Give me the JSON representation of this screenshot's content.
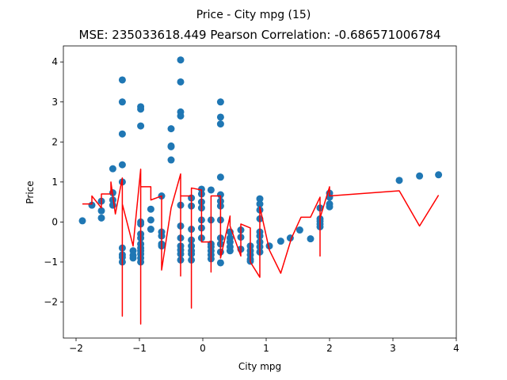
{
  "chart_data": {
    "type": "scatter",
    "title": "Price - City mpg (15)",
    "subtitle": "MSE: 235033618.449 Pearson Correlation: -0.686571006784",
    "xlabel": "City mpg",
    "ylabel": "Price",
    "xlim": [
      -2.2,
      4.0
    ],
    "ylim": [
      -2.9,
      4.4
    ],
    "xticks": [
      -2,
      -1,
      0,
      1,
      2,
      3,
      4
    ],
    "yticks": [
      -2,
      -1,
      0,
      1,
      2,
      3,
      4
    ],
    "grid": false,
    "series": [
      {
        "kind": "scatter",
        "color": "#1f77b4",
        "points": [
          [
            -1.9,
            0.03
          ],
          [
            -1.75,
            0.42
          ],
          [
            -1.6,
            0.52
          ],
          [
            -1.6,
            0.28
          ],
          [
            -1.6,
            0.1
          ],
          [
            -1.42,
            1.33
          ],
          [
            -1.42,
            0.73
          ],
          [
            -1.42,
            0.55
          ],
          [
            -1.42,
            0.42
          ],
          [
            -1.27,
            3.55
          ],
          [
            -1.27,
            3.0
          ],
          [
            -1.27,
            2.2
          ],
          [
            -1.27,
            1.43
          ],
          [
            -1.27,
            1.0
          ],
          [
            -1.27,
            -0.65
          ],
          [
            -1.27,
            -0.82
          ],
          [
            -1.27,
            -0.88
          ],
          [
            -1.27,
            -1.0
          ],
          [
            -1.1,
            -0.72
          ],
          [
            -1.1,
            -0.83
          ],
          [
            -1.1,
            -0.9
          ],
          [
            -0.98,
            2.88
          ],
          [
            -0.98,
            2.82
          ],
          [
            -0.98,
            2.4
          ],
          [
            -0.98,
            0.0
          ],
          [
            -0.98,
            -0.05
          ],
          [
            -0.98,
            -0.3
          ],
          [
            -0.98,
            -0.4
          ],
          [
            -0.98,
            -0.55
          ],
          [
            -0.98,
            -0.65
          ],
          [
            -0.98,
            -0.72
          ],
          [
            -0.98,
            -0.8
          ],
          [
            -0.98,
            -0.9
          ],
          [
            -0.98,
            -1.0
          ],
          [
            -0.82,
            0.32
          ],
          [
            -0.82,
            0.05
          ],
          [
            -0.82,
            -0.18
          ],
          [
            -0.65,
            0.65
          ],
          [
            -0.65,
            -0.25
          ],
          [
            -0.65,
            -0.35
          ],
          [
            -0.65,
            -0.55
          ],
          [
            -0.65,
            -0.6
          ],
          [
            -0.5,
            2.33
          ],
          [
            -0.5,
            1.9
          ],
          [
            -0.5,
            1.88
          ],
          [
            -0.5,
            1.55
          ],
          [
            -0.35,
            4.05
          ],
          [
            -0.35,
            3.5
          ],
          [
            -0.35,
            2.75
          ],
          [
            -0.35,
            2.65
          ],
          [
            -0.35,
            0.42
          ],
          [
            -0.35,
            -0.1
          ],
          [
            -0.35,
            -0.4
          ],
          [
            -0.35,
            -0.6
          ],
          [
            -0.35,
            -0.7
          ],
          [
            -0.35,
            -0.8
          ],
          [
            -0.35,
            -0.95
          ],
          [
            -0.18,
            0.6
          ],
          [
            -0.18,
            0.4
          ],
          [
            -0.18,
            -0.18
          ],
          [
            -0.18,
            -0.45
          ],
          [
            -0.18,
            -0.6
          ],
          [
            -0.18,
            -0.72
          ],
          [
            -0.18,
            -0.8
          ],
          [
            -0.18,
            -0.95
          ],
          [
            -0.02,
            0.82
          ],
          [
            -0.02,
            0.7
          ],
          [
            -0.02,
            0.5
          ],
          [
            -0.02,
            0.35
          ],
          [
            -0.02,
            0.05
          ],
          [
            -0.02,
            -0.15
          ],
          [
            -0.02,
            -0.4
          ],
          [
            0.13,
            0.8
          ],
          [
            0.13,
            0.05
          ],
          [
            0.13,
            -0.55
          ],
          [
            0.13,
            -0.62
          ],
          [
            0.13,
            -0.72
          ],
          [
            0.13,
            -0.82
          ],
          [
            0.13,
            -0.92
          ],
          [
            0.28,
            3.0
          ],
          [
            0.28,
            2.62
          ],
          [
            0.28,
            2.45
          ],
          [
            0.28,
            1.12
          ],
          [
            0.28,
            0.68
          ],
          [
            0.28,
            0.52
          ],
          [
            0.28,
            0.4
          ],
          [
            0.28,
            0.05
          ],
          [
            0.28,
            -0.4
          ],
          [
            0.28,
            -0.55
          ],
          [
            0.28,
            -0.75
          ],
          [
            0.28,
            -1.02
          ],
          [
            0.43,
            -0.25
          ],
          [
            0.43,
            -0.4
          ],
          [
            0.43,
            -0.5
          ],
          [
            0.43,
            -0.62
          ],
          [
            0.43,
            -0.72
          ],
          [
            0.6,
            -0.2
          ],
          [
            0.6,
            -0.38
          ],
          [
            0.6,
            -0.68
          ],
          [
            0.75,
            -0.6
          ],
          [
            0.75,
            -0.72
          ],
          [
            0.75,
            -0.82
          ],
          [
            0.75,
            -0.93
          ],
          [
            0.75,
            -0.98
          ],
          [
            0.9,
            0.58
          ],
          [
            0.9,
            0.45
          ],
          [
            0.9,
            0.3
          ],
          [
            0.9,
            0.08
          ],
          [
            0.9,
            -0.25
          ],
          [
            0.9,
            -0.35
          ],
          [
            0.9,
            -0.5
          ],
          [
            0.9,
            -0.62
          ],
          [
            0.9,
            -0.75
          ],
          [
            1.05,
            -0.6
          ],
          [
            1.23,
            -0.48
          ],
          [
            1.38,
            -0.4
          ],
          [
            1.53,
            -0.2
          ],
          [
            1.7,
            -0.42
          ],
          [
            1.85,
            0.35
          ],
          [
            1.85,
            0.08
          ],
          [
            1.85,
            0.02
          ],
          [
            1.85,
            -0.05
          ],
          [
            1.85,
            -0.12
          ],
          [
            2.0,
            0.72
          ],
          [
            2.0,
            0.62
          ],
          [
            2.0,
            0.45
          ],
          [
            2.0,
            0.38
          ],
          [
            3.1,
            1.04
          ],
          [
            3.42,
            1.15
          ],
          [
            3.72,
            1.18
          ]
        ]
      },
      {
        "kind": "line",
        "color": "#ff0000",
        "points": [
          [
            -1.9,
            0.45
          ],
          [
            -1.75,
            0.45
          ],
          [
            -1.75,
            0.65
          ],
          [
            -1.6,
            0.35
          ],
          [
            -1.6,
            0.7
          ],
          [
            -1.45,
            0.7
          ],
          [
            -1.45,
            1.0
          ],
          [
            -1.38,
            0.2
          ],
          [
            -1.27,
            1.1
          ],
          [
            -1.27,
            -2.35
          ],
          [
            -1.27,
            0.45
          ],
          [
            -1.1,
            -0.6
          ],
          [
            -0.98,
            1.32
          ],
          [
            -0.98,
            -2.55
          ],
          [
            -0.98,
            0.88
          ],
          [
            -0.82,
            0.88
          ],
          [
            -0.82,
            0.55
          ],
          [
            -0.65,
            0.65
          ],
          [
            -0.65,
            -1.2
          ],
          [
            -0.5,
            0.35
          ],
          [
            -0.35,
            1.2
          ],
          [
            -0.35,
            -1.35
          ],
          [
            -0.35,
            0.65
          ],
          [
            -0.18,
            0.65
          ],
          [
            -0.18,
            -2.15
          ],
          [
            -0.18,
            0.85
          ],
          [
            -0.02,
            0.8
          ],
          [
            -0.02,
            -0.5
          ],
          [
            0.13,
            -0.5
          ],
          [
            0.13,
            -1.25
          ],
          [
            0.13,
            0.65
          ],
          [
            0.28,
            0.65
          ],
          [
            0.28,
            -0.9
          ],
          [
            0.43,
            0.15
          ],
          [
            0.43,
            -0.1
          ],
          [
            0.6,
            -0.85
          ],
          [
            0.6,
            -0.05
          ],
          [
            0.75,
            -0.15
          ],
          [
            0.75,
            -1.0
          ],
          [
            0.9,
            -1.38
          ],
          [
            0.9,
            0.38
          ],
          [
            1.05,
            -0.7
          ],
          [
            1.23,
            -1.28
          ],
          [
            1.4,
            -0.4
          ],
          [
            1.55,
            0.12
          ],
          [
            1.7,
            0.12
          ],
          [
            1.85,
            0.62
          ],
          [
            1.85,
            -0.85
          ],
          [
            1.85,
            0.1
          ],
          [
            2.0,
            0.88
          ],
          [
            2.0,
            0.65
          ],
          [
            3.1,
            0.78
          ],
          [
            3.42,
            -0.1
          ],
          [
            3.72,
            0.67
          ]
        ]
      }
    ]
  }
}
